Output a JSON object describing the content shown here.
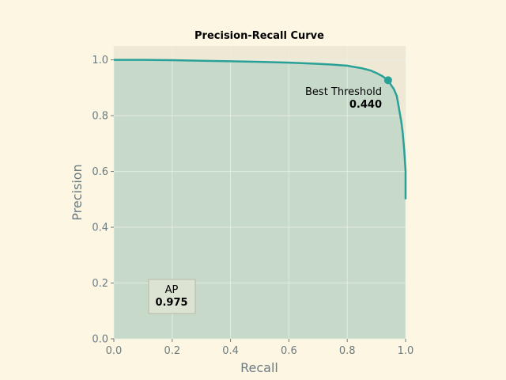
{
  "chart_data": {
    "type": "area",
    "title": "Precision-Recall Curve",
    "xlabel": "Recall",
    "ylabel": "Precision",
    "xlim": [
      0,
      1.0
    ],
    "ylim": [
      0,
      1.05
    ],
    "grid": true,
    "x_ticks": [
      "0.0",
      "0.2",
      "0.4",
      "0.6",
      "0.8",
      "1.0"
    ],
    "y_ticks": [
      "0.0",
      "0.2",
      "0.4",
      "0.6",
      "0.8",
      "1.0"
    ],
    "series": [
      {
        "x": [
          0.0,
          0.1,
          0.2,
          0.3,
          0.4,
          0.5,
          0.6,
          0.7,
          0.75,
          0.8,
          0.85,
          0.88,
          0.9,
          0.92,
          0.94,
          0.95,
          0.96,
          0.97,
          0.975,
          0.98,
          0.985,
          0.99,
          0.995,
          1.0,
          1.0
        ],
        "y": [
          1.0,
          1.0,
          0.999,
          0.997,
          0.995,
          0.993,
          0.99,
          0.986,
          0.983,
          0.979,
          0.97,
          0.962,
          0.953,
          0.942,
          0.927,
          0.91,
          0.895,
          0.87,
          0.84,
          0.81,
          0.78,
          0.74,
          0.68,
          0.6,
          0.5
        ]
      }
    ],
    "colors": {
      "line": "#2aa198",
      "fill": "#c7d9c9",
      "plot_bg": "#eee8d5",
      "grid": "#e9f1e6",
      "figure_bg": "#fdf6e3"
    },
    "best_threshold": {
      "label": "Best Threshold",
      "value": "0.440",
      "point": [
        0.94,
        0.927
      ]
    },
    "ap_box": {
      "label": "AP",
      "value": "0.975"
    }
  }
}
